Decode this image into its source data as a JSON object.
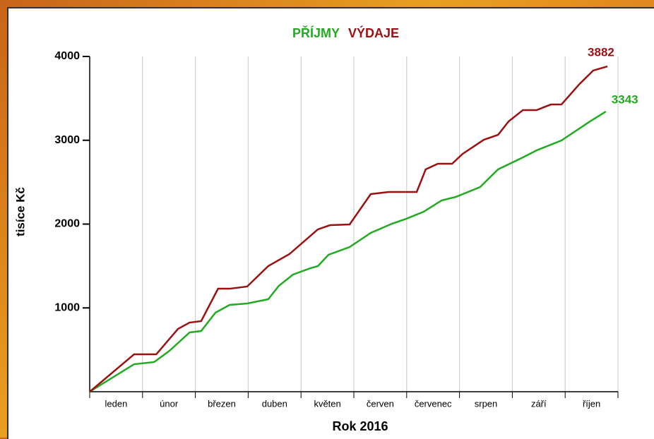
{
  "chart_data": {
    "type": "line",
    "title_series_note": null,
    "x_label": "Rok 2016",
    "y_label": "tisíce Kč",
    "xlim": [
      0,
      10
    ],
    "ylim": [
      0,
      4000
    ],
    "xticks": [
      {
        "value": 0.5,
        "label": "leden"
      },
      {
        "value": 1.5,
        "label": "únor"
      },
      {
        "value": 2.5,
        "label": "březen"
      },
      {
        "value": 3.5,
        "label": "duben"
      },
      {
        "value": 4.5,
        "label": "květen"
      },
      {
        "value": 5.5,
        "label": "červen"
      },
      {
        "value": 6.5,
        "label": "červenec"
      },
      {
        "value": 7.5,
        "label": "srpen"
      },
      {
        "value": 8.5,
        "label": "září"
      },
      {
        "value": 9.5,
        "label": "říjen"
      }
    ],
    "yticks": [
      1000,
      2000,
      3000,
      4000
    ],
    "grid": true,
    "series": [
      {
        "name": "PŘÍJMY",
        "color": "#22aa22",
        "x": [
          0,
          0.84,
          1.22,
          1.51,
          1.89,
          2.11,
          2.38,
          2.65,
          2.98,
          3.38,
          3.58,
          3.85,
          4.18,
          4.32,
          4.52,
          4.92,
          5.32,
          5.72,
          5.99,
          6.32,
          6.66,
          6.93,
          7.39,
          7.73,
          8.2,
          8.46,
          8.93,
          9.47,
          9.77
        ],
        "values": [
          0,
          328,
          354,
          488,
          707,
          724,
          943,
          1036,
          1053,
          1103,
          1263,
          1398,
          1474,
          1499,
          1634,
          1726,
          1895,
          2004,
          2063,
          2147,
          2282,
          2324,
          2442,
          2653,
          2796,
          2880,
          2998,
          3225,
          3343
        ]
      },
      {
        "name": "VÝDAJE",
        "color": "#9b1111",
        "x": [
          0,
          0.84,
          1.26,
          1.67,
          1.89,
          2.11,
          2.43,
          2.65,
          2.98,
          3.38,
          3.78,
          4.01,
          4.32,
          4.55,
          4.92,
          5.32,
          5.66,
          6.19,
          6.36,
          6.59,
          6.86,
          7.06,
          7.46,
          7.73,
          7.93,
          8.2,
          8.46,
          8.73,
          8.93,
          9.26,
          9.53,
          9.8
        ],
        "values": [
          0,
          446,
          446,
          749,
          825,
          842,
          1229,
          1229,
          1255,
          1499,
          1642,
          1768,
          1937,
          1987,
          1996,
          2358,
          2383,
          2383,
          2653,
          2720,
          2720,
          2838,
          3006,
          3065,
          3225,
          3360,
          3360,
          3427,
          3427,
          3663,
          3832,
          3882
        ]
      }
    ]
  }
}
